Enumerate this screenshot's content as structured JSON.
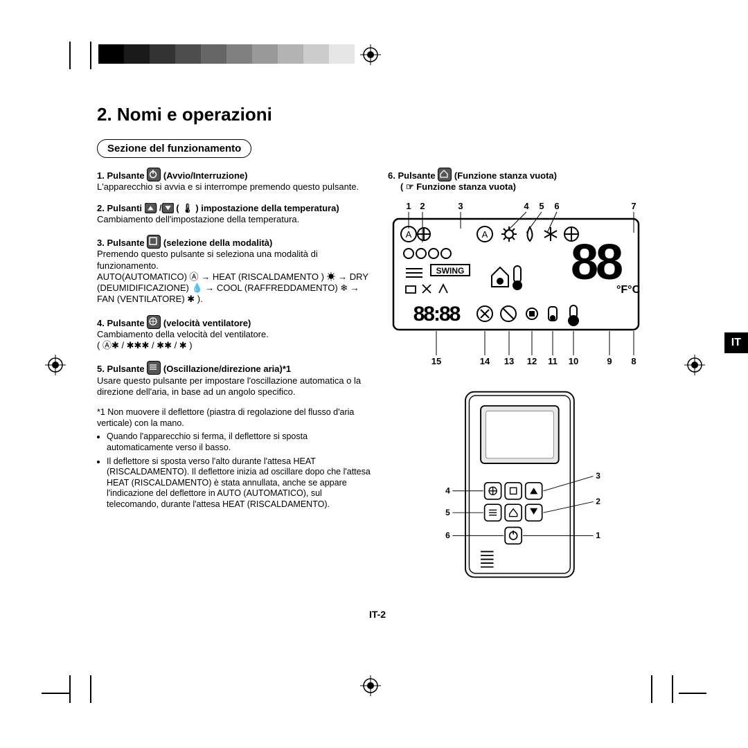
{
  "colorbar_colors": [
    "#000000",
    "#1a1a1a",
    "#333333",
    "#4d4d4d",
    "#666666",
    "#808080",
    "#999999",
    "#b3b3b3",
    "#cccccc",
    "#e6e6e6"
  ],
  "colorbar_swatch_width": 37,
  "title": "2. Nomi e operazioni",
  "section_heading": "Sezione del funzionamento",
  "items": [
    {
      "num": "1.",
      "head": "Pulsante",
      "icon": "power",
      "tail": "(Avvio/Interruzione)",
      "desc": "L'apparecchio si avvia e si interrompe premendo questo pulsante."
    },
    {
      "num": "2.",
      "head": "Pulsanti",
      "icon": "updown",
      "tail": "( 🌡 ) impostazione della temperatura)",
      "desc": "Cambiamento dell'impostazione della temperatura."
    },
    {
      "num": "3.",
      "head": "Pulsante",
      "icon": "mode",
      "tail": "(selezione della modalità)",
      "desc": "Premendo questo pulsante si seleziona una modalità di funzionamento.\nAUTO(AUTOMATICO) Ⓐ → HEAT (RISCALDAMENTO ) ☀ → DRY (DEUMIDIFICAZIONE) 💧 → COOL (RAFFREDDAMENTO) ❄ → FAN (VENTILATORE) ✱ )."
    },
    {
      "num": "4.",
      "head": "Pulsante",
      "icon": "fan",
      "tail": "(velocità ventilatore)",
      "desc": "Cambiamento della velocità del ventilatore.\n( Ⓐ✱ / ✱✱✱ / ✱✱ / ✱ )"
    },
    {
      "num": "5.",
      "head": "Pulsante",
      "icon": "swing",
      "tail": "(Oscillazione/direzione aria)*1",
      "desc": "Usare questo pulsante per impostare l'oscillazione automatica o la direzione dell'aria, in base ad un angolo specifico."
    }
  ],
  "item6": {
    "num": "6.",
    "head": "Pulsante",
    "icon": "vacant",
    "tail": "(Funzione stanza vuota)",
    "sub": "( ☞ Funzione stanza vuota)"
  },
  "footnote_lead": "*1 Non muovere il deflettore (piastra di regolazione del flusso d'aria verticale) con la mano.",
  "footnote_bullets": [
    "Quando l'apparecchio si ferma, il deflettore si sposta automaticamente verso il basso.",
    "Il deflettore si sposta verso l'alto durante l'attesa HEAT (RISCALDAMENTO). Il deflettore inizia ad oscillare dopo che l'attesa HEAT (RISCALDAMENTO) è stata annullata, anche se appare l'indicazione del deflettore in AUTO (AUTOMATICO), sul telecomando, durante l'attesa HEAT (RISCALDAMENTO)."
  ],
  "lcd_callouts_top": [
    "1",
    "2",
    "3",
    "4",
    "5",
    "6",
    "7"
  ],
  "lcd_callouts_bottom": [
    "15",
    "14",
    "13",
    "12",
    "11",
    "10",
    "9",
    "8"
  ],
  "lcd_text": {
    "swing": "SWING",
    "temp": "88",
    "fc": "°F°C",
    "clock": "88:88"
  },
  "remote_callouts_left": [
    "4",
    "5",
    "6"
  ],
  "remote_callouts_right": [
    "3",
    "2",
    "1"
  ],
  "lang_tab": "IT",
  "page_number": "IT-2"
}
